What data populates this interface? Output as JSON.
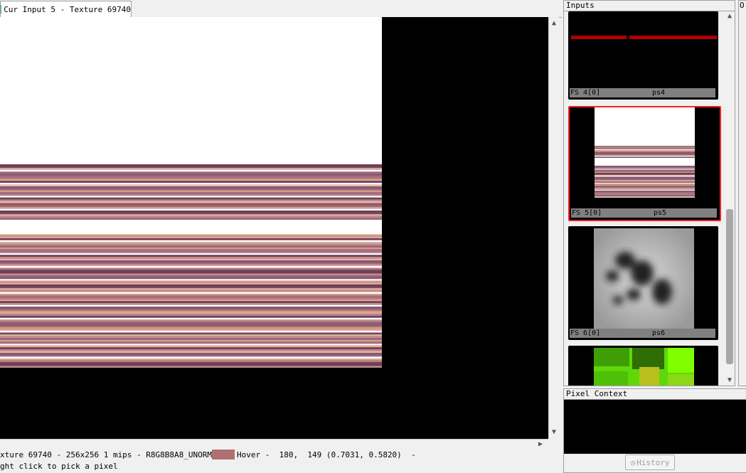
{
  "tab": {
    "label": "Cur Input 5 - Texture 69740"
  },
  "status": {
    "texture_info": "xture 69740 - 256x256 1 mips - R8G8B8A8_UNORM",
    "hover_label": "Hover -",
    "hover_values": "  180,  149 (0.7031, 0.5820)  -",
    "hint": "ght click to pick a pixel",
    "swatch_color": "#b07070"
  },
  "inputs_panel": {
    "title": "Inputs",
    "thumbnails": [
      {
        "slot": "FS 4[0]",
        "name": "ps4"
      },
      {
        "slot": "FS 5[0]",
        "name": "ps5",
        "selected": true
      },
      {
        "slot": "FS 6[0]",
        "name": "ps6"
      },
      {
        "slot": "",
        "name": ""
      }
    ]
  },
  "side_panel_title": "O",
  "pixel_context": {
    "title": "Pixel Context",
    "history_label": "History"
  }
}
